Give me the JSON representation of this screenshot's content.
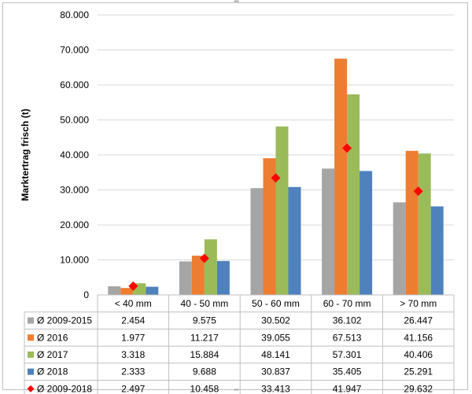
{
  "chart_data": {
    "type": "bar",
    "title": "",
    "xlabel": "",
    "ylabel": "Marktertrag frisch (t)",
    "ylim": [
      0,
      80000
    ],
    "y_ticks": [
      "0",
      "10.000",
      "20.000",
      "30.000",
      "40.000",
      "50.000",
      "60.000",
      "70.000",
      "80.000"
    ],
    "y_tick_values": [
      0,
      10000,
      20000,
      30000,
      40000,
      50000,
      60000,
      70000,
      80000
    ],
    "grid": true,
    "legend": "data-table",
    "categories": [
      "< 40 mm",
      "40 - 50 mm",
      "50 - 60 mm",
      "60 - 70 mm",
      "> 70 mm"
    ],
    "series": [
      {
        "name": "Ø 2009-2015",
        "mark": "bar",
        "color": "#a5a5a5",
        "values": [
          2454,
          9575,
          30502,
          36102,
          26447
        ],
        "labels": [
          "2.454",
          "9.575",
          "30.502",
          "36.102",
          "26.447"
        ]
      },
      {
        "name": "Ø 2016",
        "mark": "bar",
        "color": "#ed7d31",
        "values": [
          1977,
          11217,
          39055,
          67513,
          41156
        ],
        "labels": [
          "1.977",
          "11.217",
          "39.055",
          "67.513",
          "41.156"
        ]
      },
      {
        "name": "Ø 2017",
        "mark": "bar",
        "color": "#9bbb59",
        "values": [
          3318,
          15884,
          48141,
          57301,
          40406
        ],
        "labels": [
          "3.318",
          "15.884",
          "48.141",
          "57.301",
          "40.406"
        ]
      },
      {
        "name": "Ø 2018",
        "mark": "bar",
        "color": "#4f81bd",
        "values": [
          2333,
          9688,
          30837,
          35405,
          25291
        ],
        "labels": [
          "2.333",
          "9.688",
          "30.837",
          "35.405",
          "25.291"
        ]
      },
      {
        "name": "Ø 2009-2018",
        "mark": "diamond",
        "color": "#ff0000",
        "values": [
          2497,
          10458,
          33413,
          41947,
          29632
        ],
        "labels": [
          "2.497",
          "10.458",
          "33.413",
          "41.947",
          "29.632"
        ]
      }
    ]
  }
}
